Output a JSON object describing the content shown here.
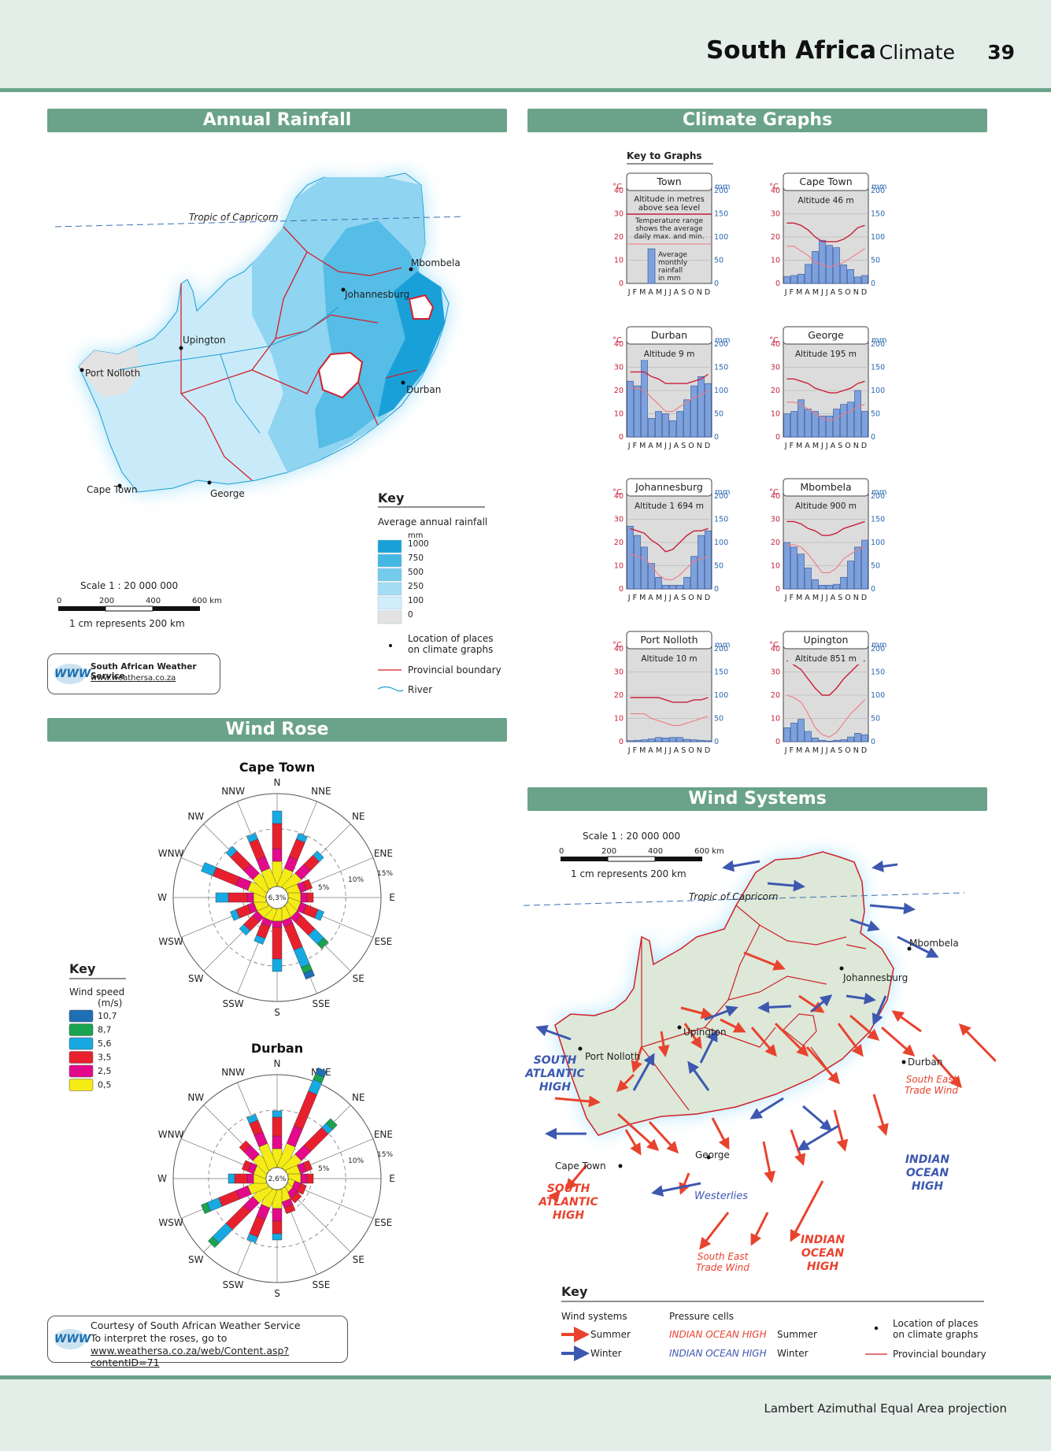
{
  "header": {
    "title": "South Africa",
    "subtitle": "Climate",
    "page_number": "39"
  },
  "footer": {
    "projection": "Lambert Azimuthal Equal Area projection"
  },
  "sections": {
    "annual_rainfall": "Annual Rainfall",
    "climate_graphs": "Climate Graphs",
    "wind_rose": "Wind Rose",
    "wind_systems": "Wind Systems"
  },
  "rainfall_map": {
    "tropic": "Tropic of Capricorn",
    "places": [
      "Mbombela",
      "Johannesburg",
      "Upington",
      "Port Nolloth",
      "Durban",
      "Cape Town",
      "George"
    ],
    "scale_text": "Scale 1 : 20 000 000",
    "scale_ticks": [
      "0",
      "200",
      "400",
      "600 km"
    ],
    "scale_note": "1 cm represents 200 km",
    "key_title": "Key",
    "key_subtitle": "Average annual rainfall",
    "key_unit": "mm",
    "key_values": [
      "1000",
      "750",
      "500",
      "250",
      "100",
      "0"
    ],
    "key_colors": [
      "#1aa0d8",
      "#45b7e3",
      "#75cbec",
      "#a3dcf3",
      "#d2eefa",
      "#e3e3e3"
    ],
    "key_location": "Location of places on climate graphs",
    "key_boundary": "Provincial boundary",
    "key_river": "River",
    "sws_name": "South African Weather Service",
    "sws_url": "www.weathersa.co.za",
    "sws_logo": "WWW"
  },
  "key_to_graphs": {
    "title": "Key to Graphs",
    "town": "Town",
    "altitude_note": "Altitude in metres above sea level",
    "temp_note": "Temperature range shows the average daily max. and min.",
    "rain_note": "Average monthly rainfall in mm"
  },
  "graph_axes": {
    "temp_unit": "°C",
    "rain_unit": "mm",
    "temp_ticks": [
      "40",
      "30",
      "20",
      "10",
      "0"
    ],
    "rain_ticks": [
      "200",
      "150",
      "100",
      "50",
      "0"
    ],
    "months": "J F M A M J J A S O N D"
  },
  "climate_graphs": [
    {
      "town": "Cape Town",
      "altitude": "Altitude 46 m",
      "rain": [
        15,
        17,
        20,
        41,
        69,
        93,
        82,
        77,
        40,
        30,
        14,
        17
      ],
      "tmax": [
        26,
        26,
        25,
        23,
        20,
        18,
        18,
        18,
        19,
        21,
        24,
        25
      ],
      "tmin": [
        16,
        16,
        14,
        12,
        9,
        8,
        7,
        8,
        9,
        11,
        13,
        15
      ]
    },
    {
      "town": "Durban",
      "altitude": "Altitude 9 m",
      "rain": [
        120,
        110,
        170,
        40,
        55,
        50,
        35,
        55,
        80,
        110,
        130,
        115
      ],
      "tmax": [
        28,
        28,
        28,
        26,
        25,
        23,
        23,
        23,
        23,
        24,
        25,
        27
      ],
      "tmin": [
        21,
        21,
        20,
        17,
        14,
        11,
        11,
        13,
        15,
        17,
        18,
        20
      ],
      "note": ""
    },
    {
      "town": "George",
      "altitude": "Altitude 195 m",
      "rain": [
        50,
        55,
        80,
        60,
        55,
        45,
        45,
        60,
        70,
        75,
        100,
        55
      ],
      "tmax": [
        25,
        25,
        24,
        23,
        21,
        20,
        19,
        19,
        20,
        21,
        23,
        24
      ],
      "tmin": [
        15,
        15,
        14,
        12,
        10,
        8,
        7,
        8,
        10,
        11,
        13,
        14
      ]
    },
    {
      "town": "Johannesburg",
      "altitude": "Altitude 1 694 m",
      "rain": [
        135,
        115,
        90,
        55,
        25,
        8,
        8,
        8,
        25,
        70,
        115,
        125
      ],
      "tmax": [
        26,
        25,
        24,
        21,
        19,
        16,
        17,
        20,
        23,
        25,
        25,
        26
      ],
      "tmin": [
        15,
        14,
        13,
        10,
        6,
        4,
        4,
        6,
        9,
        12,
        13,
        14
      ]
    },
    {
      "town": "Mbombela",
      "altitude": "Altitude 900 m",
      "rain": [
        100,
        90,
        75,
        45,
        20,
        8,
        8,
        10,
        25,
        60,
        90,
        105
      ],
      "tmax": [
        29,
        29,
        28,
        26,
        25,
        23,
        23,
        24,
        26,
        27,
        28,
        29
      ],
      "tmin": [
        19,
        19,
        18,
        15,
        11,
        7,
        7,
        9,
        13,
        15,
        17,
        18
      ]
    },
    {
      "town": "Port Nolloth",
      "altitude": "Altitude 10 m",
      "rain": [
        2,
        3,
        4,
        6,
        9,
        8,
        9,
        9,
        5,
        4,
        3,
        2
      ],
      "tmax": [
        19,
        19,
        19,
        19,
        19,
        18,
        17,
        17,
        17,
        18,
        18,
        19
      ],
      "tmin": [
        12,
        12,
        12,
        10,
        9,
        8,
        7,
        7,
        8,
        9,
        10,
        11
      ]
    },
    {
      "town": "Upington",
      "altitude": "Altitude 851 m",
      "rain": [
        30,
        40,
        48,
        22,
        8,
        3,
        1,
        3,
        4,
        10,
        18,
        15
      ],
      "tmax": [
        35,
        33,
        31,
        27,
        23,
        20,
        20,
        23,
        27,
        30,
        33,
        35
      ],
      "tmin": [
        20,
        19,
        17,
        12,
        6,
        3,
        2,
        4,
        8,
        12,
        15,
        18
      ]
    }
  ],
  "wind_rose": {
    "directions": [
      "N",
      "NNE",
      "NE",
      "ENE",
      "E",
      "ESE",
      "SE",
      "SSE",
      "S",
      "SSW",
      "SW",
      "WSW",
      "W",
      "WNW",
      "NW",
      "NNW"
    ],
    "rings": [
      "5%",
      "10%",
      "15%"
    ],
    "key_title": "Key",
    "key_subtitle": "Wind speed (m/s)",
    "speeds": [
      "10,7",
      "8,7",
      "5,6",
      "3,5",
      "2,5",
      "0,5"
    ],
    "speed_colors": [
      "#1e6fb6",
      "#1aa450",
      "#17a9e1",
      "#e8202e",
      "#e4098a",
      "#f5ec16"
    ],
    "roses": [
      {
        "name": "Cape Town",
        "calm": "6,3%",
        "petals": [
          [
            0,
            0,
            2,
            4,
            2,
            4
          ],
          [
            0,
            0,
            1,
            3,
            2,
            3
          ],
          [
            0,
            0,
            1,
            2,
            2,
            3
          ],
          [
            0,
            0,
            0,
            1,
            1,
            2
          ],
          [
            0,
            0,
            0,
            1,
            1,
            2
          ],
          [
            0,
            0,
            1,
            2,
            1,
            2
          ],
          [
            0,
            1,
            2,
            3,
            1,
            2
          ],
          [
            1,
            1,
            3,
            4,
            1,
            2
          ],
          [
            0,
            0,
            2,
            5,
            1,
            2
          ],
          [
            0,
            0,
            1,
            2,
            1,
            2
          ],
          [
            0,
            0,
            1,
            2,
            1,
            2
          ],
          [
            0,
            0,
            1,
            2,
            1,
            2
          ],
          [
            0,
            0,
            2,
            3,
            1,
            2
          ],
          [
            0,
            0,
            2,
            4,
            2,
            3
          ],
          [
            0,
            0,
            1,
            3,
            2,
            3
          ],
          [
            0,
            0,
            1,
            3,
            2,
            3
          ]
        ]
      },
      {
        "name": "Durban",
        "calm": "2,6%",
        "petals": [
          [
            0,
            0,
            1,
            3,
            2,
            3
          ],
          [
            1,
            1,
            2,
            6,
            3,
            4
          ],
          [
            0,
            1,
            1,
            4,
            2,
            3
          ],
          [
            0,
            0,
            0,
            1,
            1,
            2
          ],
          [
            0,
            0,
            0,
            1,
            1,
            2
          ],
          [
            0,
            0,
            0,
            1,
            1,
            1
          ],
          [
            0,
            0,
            0,
            1,
            1,
            1
          ],
          [
            0,
            0,
            0,
            1,
            1,
            2
          ],
          [
            0,
            0,
            1,
            2,
            2,
            3
          ],
          [
            0,
            0,
            1,
            3,
            2,
            3
          ],
          [
            0,
            1,
            3,
            4,
            2,
            3
          ],
          [
            0,
            1,
            2,
            3,
            2,
            3
          ],
          [
            0,
            0,
            1,
            2,
            1,
            2
          ],
          [
            0,
            0,
            0,
            1,
            1,
            2
          ],
          [
            0,
            0,
            0,
            1,
            2,
            3
          ],
          [
            0,
            0,
            1,
            2,
            2,
            4
          ]
        ]
      }
    ],
    "courtesy1": "Courtesy of South African Weather Service",
    "courtesy2": "To interpret the roses, go to",
    "courtesy3": "www.weathersa.co.za/web/Content.asp?contentID=71"
  },
  "wind_map": {
    "scale_text": "Scale 1 : 20 000 000",
    "scale_ticks": [
      "0",
      "200",
      "400",
      "600 km"
    ],
    "scale_note": "1 cm represents 200 km",
    "tropic": "Tropic of Capricorn",
    "places": [
      "Mbombela",
      "Johannesburg",
      "Upington",
      "Port Nolloth",
      "Durban",
      "George",
      "Cape Town"
    ],
    "south_atlantic_high_winter": [
      "SOUTH",
      "ATLANTIC",
      "HIGH"
    ],
    "south_atlantic_high_summer": [
      "SOUTH",
      "ATLANTIC",
      "HIGH"
    ],
    "indian_ocean_high_winter": [
      "INDIAN",
      "OCEAN",
      "HIGH"
    ],
    "indian_ocean_high_summer": [
      "INDIAN",
      "OCEAN",
      "HIGH"
    ],
    "trade_wind_east": [
      "South East",
      "Trade Wind"
    ],
    "trade_wind_south": [
      "South East",
      "Trade Wind"
    ],
    "westerlies": "Westerlies",
    "key_title": "Key",
    "key_wind_systems": "Wind systems",
    "key_summer": "Summer",
    "key_winter": "Winter",
    "key_pressure": "Pressure cells",
    "key_ioh": "INDIAN OCEAN HIGH",
    "key_location": "Location of places on climate graphs",
    "key_boundary": "Provincial boundary",
    "summer_color": "#e8432e",
    "winter_color": "#3d58b0"
  }
}
